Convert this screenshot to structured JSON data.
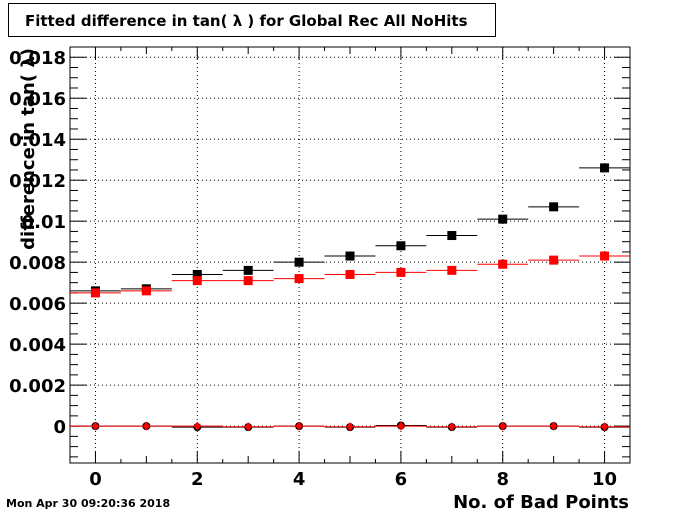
{
  "title": "Fitted difference in tan( λ ) for Global Rec All NoHits",
  "timestamp": "Mon Apr 30 09:20:36 2018",
  "chart_data": {
    "type": "scatter",
    "title": "Fitted difference in tan( λ ) for Global Rec All NoHits",
    "xlabel": "No. of Bad Points",
    "ylabel": "difference in tan( λ)",
    "xlim": [
      -0.5,
      10.5
    ],
    "ylim": [
      -0.0018,
      0.0185
    ],
    "grid": true,
    "x_ticks": [
      0,
      2,
      4,
      6,
      8,
      10
    ],
    "y_ticks": [
      0,
      0.002,
      0.004,
      0.006,
      0.008,
      0.01,
      0.012,
      0.014,
      0.016,
      0.018
    ],
    "y_tick_labels": [
      "0",
      "0.002",
      "0.004",
      "0.006",
      "0.008",
      "0.01",
      "0.012",
      "0.014",
      "0.016",
      "0.018"
    ],
    "series": [
      {
        "color": "#000000",
        "marker": "square",
        "x": [
          0,
          1,
          2,
          3,
          4,
          5,
          6,
          7,
          8,
          9,
          10
        ],
        "y": [
          0.0066,
          0.0067,
          0.0074,
          0.0076,
          0.008,
          0.0083,
          0.0088,
          0.0093,
          0.0101,
          0.0107,
          0.0126
        ]
      },
      {
        "color": "#ff0000",
        "marker": "square",
        "x": [
          0,
          1,
          2,
          3,
          4,
          5,
          6,
          7,
          8,
          9,
          10
        ],
        "y": [
          0.0065,
          0.0066,
          0.0071,
          0.0071,
          0.0072,
          0.0074,
          0.0075,
          0.0076,
          0.0079,
          0.0081,
          0.0083
        ]
      },
      {
        "color": "#000000",
        "marker": "circle",
        "x": [
          0,
          1,
          2,
          3,
          4,
          5,
          6,
          7,
          8,
          9,
          10
        ],
        "y": [
          0.0,
          0.0,
          -5e-05,
          -5e-05,
          0.0,
          -5e-05,
          3e-05,
          -5e-05,
          0.0,
          0.0,
          -5e-05
        ]
      },
      {
        "color": "#ff0000",
        "marker": "diamond",
        "x": [
          0,
          1,
          2,
          3,
          4,
          5,
          6,
          7,
          8,
          9,
          10
        ],
        "y": [
          0.0,
          0.0,
          0.0,
          -3e-05,
          0.0,
          -3e-05,
          0.0,
          -3e-05,
          0.0,
          0.0,
          -3e-05
        ]
      }
    ]
  }
}
